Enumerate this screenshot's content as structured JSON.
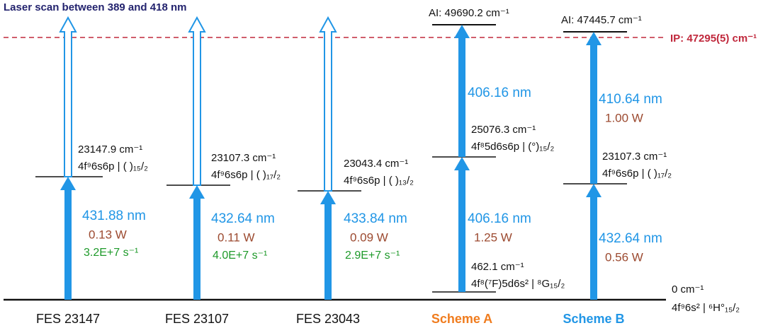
{
  "title": "Laser scan between 389 and 418 nm",
  "ionization_potential": "IP: 47295(5) cm⁻¹",
  "ground": {
    "energy": "0 cm⁻¹",
    "configuration": "4f⁹6s² | ⁶H°₁₅/₂"
  },
  "columns": [
    {
      "name": "FES 23147",
      "level": {
        "energy": "23147.9 cm⁻¹",
        "configuration": "4f⁹6s6p | ( )₁₅/₂"
      },
      "transitions": [
        {
          "wavelength": "431.88 nm",
          "power": "0.13 W",
          "rate": "3.2E+7 s⁻¹"
        }
      ]
    },
    {
      "name": "FES 23107",
      "level": {
        "energy": "23107.3 cm⁻¹",
        "configuration": "4f⁹6s6p | ( )₁₇/₂"
      },
      "transitions": [
        {
          "wavelength": "432.64 nm",
          "power": "0.11 W",
          "rate": "4.0E+7 s⁻¹"
        }
      ]
    },
    {
      "name": "FES 23043",
      "level": {
        "energy": "23043.4 cm⁻¹",
        "configuration": "4f⁹6s6p | ( )₁₃/₂"
      },
      "transitions": [
        {
          "wavelength": "433.84 nm",
          "power": "0.09 W",
          "rate": "2.9E+7 s⁻¹"
        }
      ]
    },
    {
      "name": "Scheme A",
      "lower_level": {
        "energy": "462.1 cm⁻¹",
        "configuration": "4f⁸(⁷F)5d6s² | ⁸G₁₅/₂"
      },
      "level": {
        "energy": "25076.3 cm⁻¹",
        "configuration": "4f⁸5d6s6p | (°)₁₅/₂"
      },
      "transitions": [
        {
          "wavelength": "406.16 nm",
          "power": "1.25 W"
        },
        {
          "wavelength": "406.16 nm"
        }
      ],
      "autoionizing": "AI: 49690.2 cm⁻¹"
    },
    {
      "name": "Scheme B",
      "level": {
        "energy": "23107.3 cm⁻¹",
        "configuration": "4f⁹6s6p | ( )₁₇/₂"
      },
      "transitions": [
        {
          "wavelength": "432.64 nm",
          "power": "0.56 W"
        },
        {
          "wavelength": "410.64 nm",
          "power": "1.00 W"
        }
      ],
      "autoionizing": "AI: 47445.7 cm⁻¹"
    }
  ]
}
